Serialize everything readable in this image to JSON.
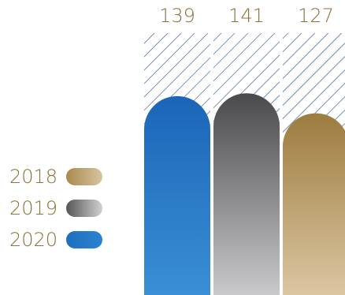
{
  "chart_data": {
    "type": "bar",
    "categories": [
      "2020",
      "2019",
      "2018"
    ],
    "values": [
      139,
      141,
      127
    ],
    "value_labels": [
      "139",
      "141",
      "127"
    ],
    "legend": [
      {
        "label": "2018",
        "color": "#a88a4c"
      },
      {
        "label": "2019",
        "color": "#555555"
      },
      {
        "label": "2020",
        "color": "#1e6fbe"
      }
    ],
    "legend_placement": "left",
    "colors": {
      "2020": [
        "#1b65b8",
        "#3a8fd4"
      ],
      "2019": [
        "#4a4a4c",
        "#c9c9cc"
      ],
      "2018": [
        "#9c7c3f",
        "#dcc6a2"
      ]
    },
    "label_color": "#8a7339",
    "hatch_color": "#1f4a86"
  }
}
